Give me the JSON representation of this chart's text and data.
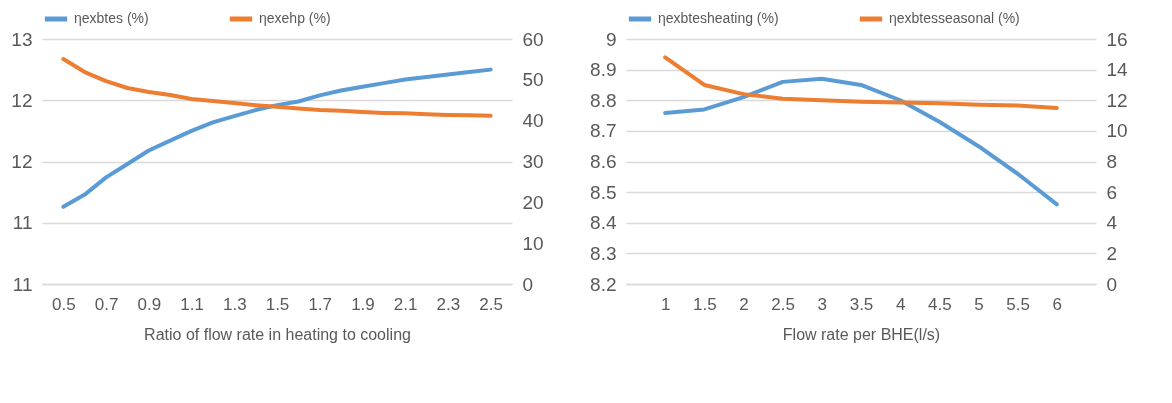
{
  "chart_data": [
    {
      "type": "line",
      "xlabel": "Ratio of flow rate in heating to cooling",
      "legend": "top",
      "grid": "y",
      "marker": "none",
      "line_style": "solid",
      "x": [
        0.5,
        0.6,
        0.7,
        0.8,
        0.9,
        1.0,
        1.1,
        1.2,
        1.3,
        1.4,
        1.5,
        1.6,
        1.7,
        1.8,
        1.9,
        2.0,
        2.1,
        2.2,
        2.3,
        2.4,
        2.5
      ],
      "xlim": [
        0.4,
        2.6
      ],
      "xticks": [
        0.5,
        0.7,
        0.9,
        1.1,
        1.3,
        1.5,
        1.7,
        1.9,
        2.1,
        2.3,
        2.5
      ],
      "ylim": [
        10.5,
        12.5
      ],
      "yticks": [
        {
          "value": 10.5,
          "label": "11"
        },
        {
          "value": 11,
          "label": "11"
        },
        {
          "value": 11.5,
          "label": "12"
        },
        {
          "value": 12,
          "label": "12"
        },
        {
          "value": 12.5,
          "label": "13"
        }
      ],
      "y2lim": [
        0,
        60
      ],
      "y2ticks": [
        0,
        10,
        20,
        30,
        40,
        50,
        60
      ],
      "series": [
        {
          "name": "ηexbtes (%)",
          "color": "#5b9bd5",
          "values": [
            11.13,
            11.23,
            11.37,
            11.48,
            11.59,
            11.67,
            11.75,
            11.82,
            11.87,
            11.92,
            11.96,
            11.99,
            12.04,
            12.08,
            12.11,
            12.14,
            12.17,
            12.19,
            12.21,
            12.23,
            12.25
          ]
        },
        {
          "name": "ηexehp (%)",
          "color": "#ed7d31",
          "axis": "y2",
          "values": [
            55.1,
            51.9,
            49.7,
            48.0,
            47.0,
            46.3,
            45.3,
            44.8,
            44.3,
            43.8,
            43.4,
            43.0,
            42.6,
            42.4,
            42.1,
            41.9,
            41.8,
            41.6,
            41.4,
            41.3,
            41.2
          ]
        }
      ]
    },
    {
      "type": "line",
      "xlabel": "Flow rate per BHE(l/s)",
      "legend": "top",
      "grid": "y",
      "marker": "none",
      "line_style": "solid",
      "x": [
        1,
        1.5,
        2,
        2.5,
        3,
        3.5,
        4,
        4.5,
        5,
        5.5,
        6
      ],
      "xlim": [
        0.5,
        6.5
      ],
      "xticks": [
        1,
        1.5,
        2,
        2.5,
        3,
        3.5,
        4,
        4.5,
        5,
        5.5,
        6
      ],
      "ylim": [
        8.2,
        9
      ],
      "yticks": [
        8.2,
        8.3,
        8.4,
        8.5,
        8.6,
        8.7,
        8.8,
        8.9,
        9
      ],
      "y2lim": [
        0,
        16
      ],
      "y2ticks": [
        0,
        2,
        4,
        6,
        8,
        10,
        12,
        14,
        16
      ],
      "series": [
        {
          "name": "ηexbtesheating (%)",
          "color": "#5b9bd5",
          "values": [
            8.758,
            8.77,
            8.81,
            8.86,
            8.87,
            8.85,
            8.8,
            8.73,
            8.65,
            8.56,
            8.46
          ]
        },
        {
          "name": "ηexbtesseasonal (%)",
          "color": "#ed7d31",
          "axis": "y2",
          "values": [
            14.8,
            13.0,
            12.4,
            12.1,
            12.0,
            11.9,
            11.85,
            11.8,
            11.7,
            11.65,
            11.5
          ]
        }
      ]
    }
  ]
}
